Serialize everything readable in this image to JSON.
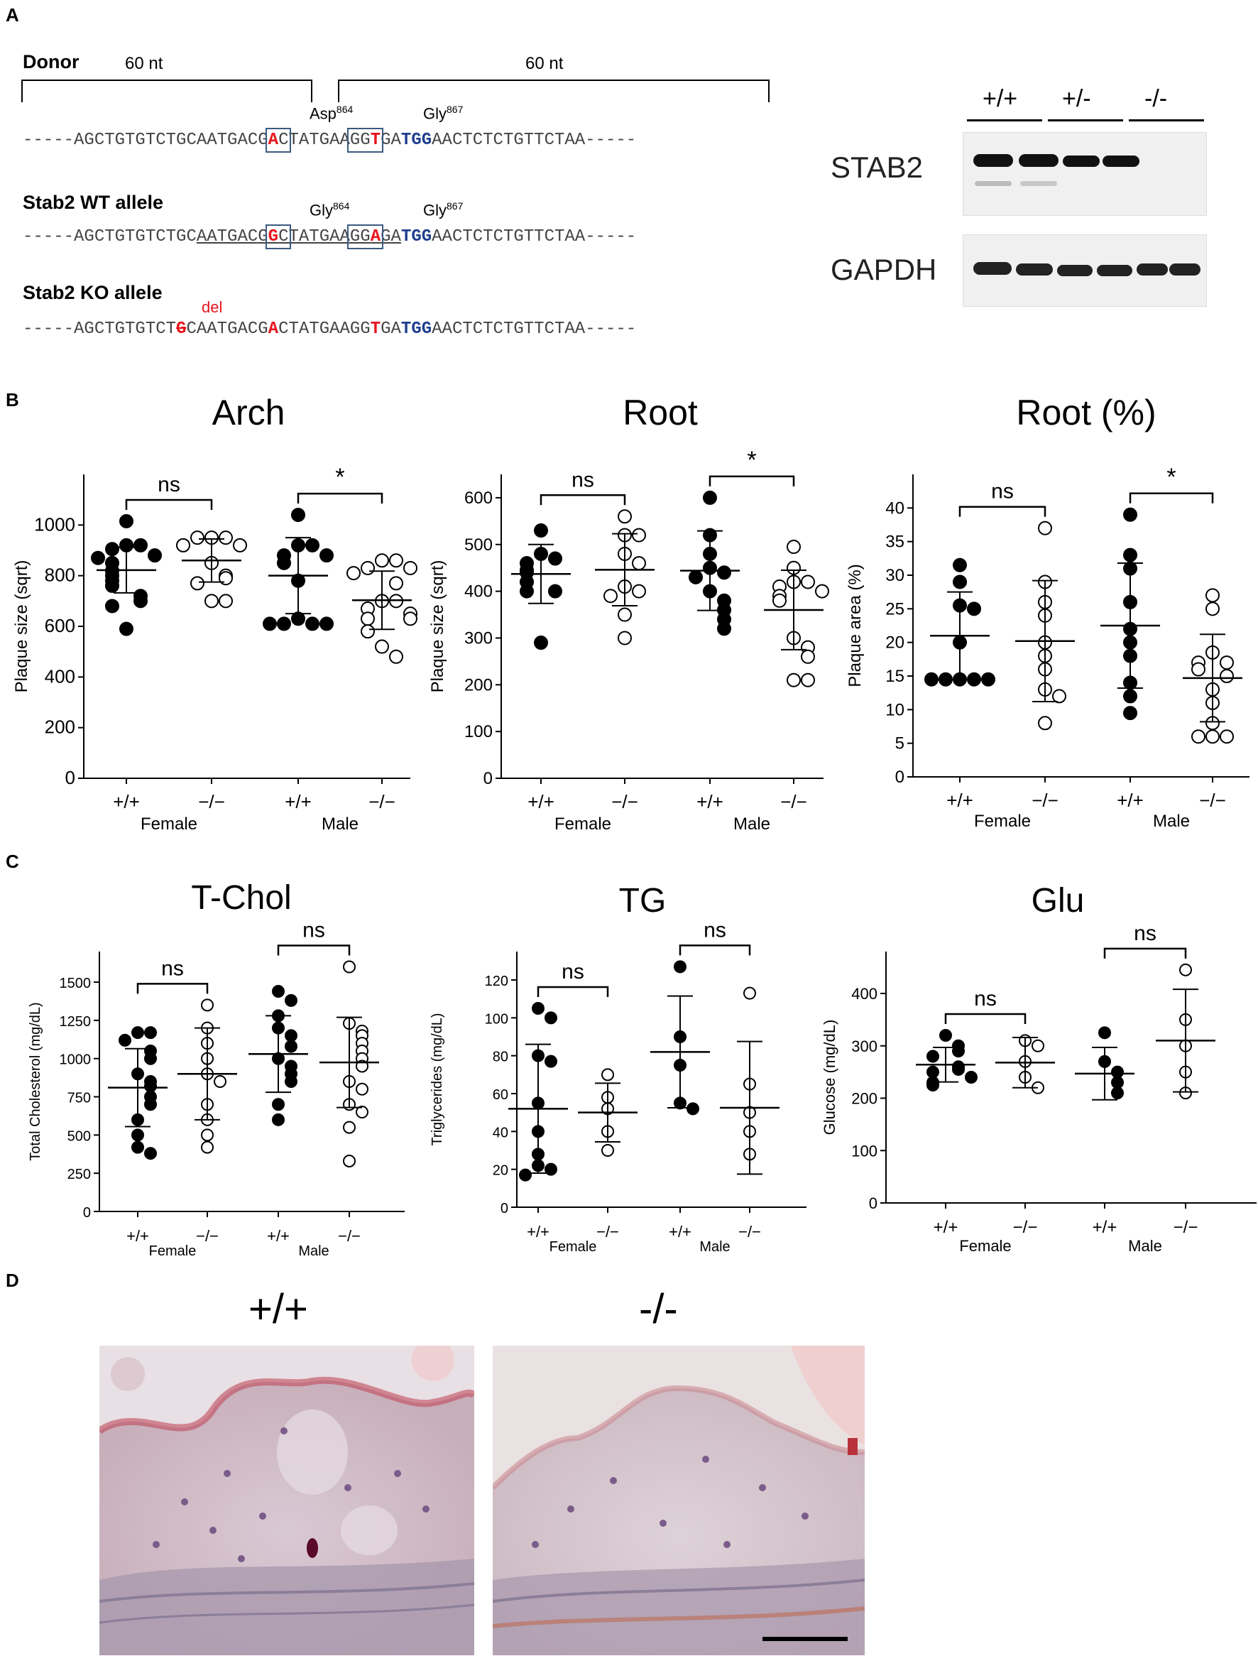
{
  "panel_letters": {
    "a": "A",
    "b": "B",
    "c": "C",
    "d": "D"
  },
  "panel_a": {
    "nt_left": "60 nt",
    "nt_right": "60 nt",
    "donor": {
      "label": "Donor",
      "codon1": "Asp",
      "codon1_sup": "864",
      "codon2": "Gly",
      "codon2_sup": "867",
      "s1": "-----AGCTGTGTCTGCAATGACG",
      "s2": "A",
      "s3": "C",
      "s4": "TATGAA",
      "s5": "GG",
      "s6": "T",
      "s7": "GA",
      "s8": "TGG",
      "s9": "AACTCTCTGTTCTAA-----"
    },
    "wt": {
      "label": "Stab2 WT allele",
      "codon1": "Gly",
      "codon1_sup": "864",
      "codon2": "Gly",
      "codon2_sup": "867",
      "s1": "-----AGCTGTGTCTGC",
      "s1u": "AATGAC",
      "s2a": "G",
      "s2": "G",
      "s3": "C",
      "s4": "TATGAA",
      "s5": "GG",
      "s6": "A",
      "s7": "GA",
      "s8": "TGG",
      "s9": "AACTCTCTGTTCTAA-----"
    },
    "ko": {
      "label": "Stab2 KO allele",
      "del": "del",
      "s1": "-----AGCTGTGTCT",
      "sx": "G",
      "s2": "CAATGACG",
      "s3": "A",
      "s4": "CTATGAAGG",
      "s5": "T",
      "s6": "GA",
      "s7": "TGG",
      "s8": "AACTCTCTGTTCTAA-----"
    },
    "blot": {
      "genotypes": [
        "+/+",
        "+/-",
        "-/-"
      ],
      "protein1": "STAB2",
      "protein2": "GAPDH"
    }
  },
  "chart_data": [
    {
      "type": "scatter",
      "title": "Arch",
      "ylabel": "Plaque size (sqrt)",
      "ylim": [
        0,
        1200
      ],
      "yticks": [
        0,
        200,
        400,
        600,
        800,
        1000
      ],
      "groups": [
        "+/+",
        "−/−",
        "+/+",
        "−/−"
      ],
      "sexes": [
        "Female",
        "Male"
      ],
      "filled": [
        true,
        false,
        true,
        false
      ],
      "means": [
        822,
        860,
        800,
        703
      ],
      "sd": [
        90,
        85,
        150,
        115
      ],
      "points": [
        [
          1015,
          920,
          920,
          905,
          880,
          870,
          850,
          820,
          800,
          780,
          760,
          720,
          700,
          680,
          590
        ],
        [
          950,
          950,
          950,
          920,
          920,
          850,
          800,
          790,
          770,
          700,
          700
        ],
        [
          1040,
          920,
          920,
          880,
          880,
          850,
          780,
          630,
          610,
          610,
          610,
          610
        ],
        [
          860,
          860,
          830,
          830,
          810,
          770,
          700,
          700,
          670,
          650,
          630,
          630,
          580,
          520,
          480
        ]
      ],
      "brackets": [
        {
          "label": "ns",
          "from": 0,
          "to": 1
        },
        {
          "label": "*",
          "from": 2,
          "to": 3
        }
      ]
    },
    {
      "type": "scatter",
      "title": "Root",
      "ylabel": "Plaque size (sqrt)",
      "ylim": [
        0,
        650
      ],
      "yticks": [
        0,
        100,
        200,
        300,
        400,
        500,
        600
      ],
      "groups": [
        "+/+",
        "−/−",
        "+/+",
        "−/−"
      ],
      "sexes": [
        "Female",
        "Male"
      ],
      "filled": [
        true,
        false,
        true,
        false
      ],
      "means": [
        437,
        446,
        444,
        360
      ],
      "sd": [
        63,
        77,
        85,
        85
      ],
      "points": [
        [
          530,
          480,
          470,
          460,
          445,
          440,
          420,
          400,
          400,
          290
        ],
        [
          560,
          520,
          520,
          480,
          460,
          410,
          400,
          390,
          350,
          300
        ],
        [
          600,
          520,
          480,
          450,
          440,
          430,
          400,
          380,
          360,
          340,
          320
        ],
        [
          495,
          450,
          420,
          420,
          410,
          400,
          390,
          380,
          300,
          280,
          260,
          210,
          210
        ]
      ],
      "brackets": [
        {
          "label": "ns",
          "from": 0,
          "to": 1
        },
        {
          "label": "*",
          "from": 2,
          "to": 3
        }
      ]
    },
    {
      "type": "scatter",
      "title": "Root (%)",
      "ylabel": "Plaque area (%)",
      "ylim": [
        0,
        45
      ],
      "yticks": [
        0,
        5,
        10,
        15,
        20,
        25,
        30,
        35,
        40
      ],
      "groups": [
        "+/+",
        "−/−",
        "+/+",
        "−/−"
      ],
      "sexes": [
        "Female",
        "Male"
      ],
      "filled": [
        true,
        false,
        true,
        false
      ],
      "means": [
        21,
        20.2,
        22.5,
        14.7
      ],
      "sd": [
        6.5,
        9,
        9.3,
        6.5
      ],
      "points": [
        [
          31.5,
          29,
          25.5,
          25,
          20,
          14.5,
          14.5,
          14.5,
          14.5,
          14.5
        ],
        [
          37,
          29,
          26,
          24,
          20,
          18,
          16,
          13,
          12,
          8
        ],
        [
          39,
          33,
          31,
          26,
          22,
          20,
          18,
          14,
          12,
          9.5
        ],
        [
          27,
          25,
          18.5,
          17,
          17,
          16,
          15,
          13,
          11,
          8,
          6,
          6,
          6
        ]
      ],
      "brackets": [
        {
          "label": "ns",
          "from": 0,
          "to": 1
        },
        {
          "label": "*",
          "from": 2,
          "to": 3
        }
      ]
    },
    {
      "type": "scatter",
      "title": "T-Chol",
      "ylabel": "Total Cholesterol (mg/dL)",
      "ylim": [
        0,
        1700
      ],
      "yticks": [
        0,
        250,
        500,
        750,
        1000,
        1250,
        1500
      ],
      "groups": [
        "+/+",
        "−/−",
        "+/+",
        "−/−"
      ],
      "sexes": [
        "Female",
        "Male"
      ],
      "filled": [
        true,
        false,
        true,
        false
      ],
      "means": [
        810,
        900,
        1030,
        975
      ],
      "sd": [
        255,
        300,
        250,
        295
      ],
      "points": [
        [
          1170,
          1170,
          1120,
          1050,
          1000,
          900,
          850,
          820,
          750,
          700,
          600,
          500,
          420,
          380
        ],
        [
          1350,
          1200,
          1100,
          1000,
          900,
          850,
          700,
          600,
          500,
          420
        ],
        [
          1440,
          1380,
          1280,
          1200,
          1150,
          1080,
          1000,
          950,
          900,
          850,
          700,
          600
        ],
        [
          1600,
          1230,
          1180,
          1150,
          1100,
          1050,
          1000,
          950,
          850,
          800,
          700,
          650,
          550,
          330
        ]
      ],
      "brackets": [
        {
          "label": "ns",
          "from": 0,
          "to": 1
        },
        {
          "label": "ns",
          "from": 2,
          "to": 3
        }
      ]
    },
    {
      "type": "scatter",
      "title": "TG",
      "ylabel": "Triglycerides (mg/dL)",
      "ylim": [
        0,
        135
      ],
      "yticks": [
        0,
        20,
        40,
        60,
        80,
        100,
        120
      ],
      "groups": [
        "+/+",
        "−/−",
        "+/+",
        "−/−"
      ],
      "sexes": [
        "Female",
        "Male"
      ],
      "filled": [
        true,
        false,
        true,
        false
      ],
      "means": [
        52,
        50,
        82,
        52.5
      ],
      "sd": [
        34,
        15.5,
        29.5,
        35
      ],
      "points": [
        [
          105,
          100,
          80,
          77,
          55,
          40,
          28,
          22,
          20,
          17
        ],
        [
          70,
          58,
          52,
          40,
          30
        ],
        [
          127,
          90,
          75,
          55,
          52
        ],
        [
          113,
          65,
          50,
          40,
          28
        ]
      ],
      "brackets": [
        {
          "label": "ns",
          "from": 0,
          "to": 1
        },
        {
          "label": "ns",
          "from": 2,
          "to": 3
        }
      ]
    },
    {
      "type": "scatter",
      "title": "Glu",
      "ylabel": "Glucose (mg/dL)",
      "ylim": [
        0,
        480
      ],
      "yticks": [
        0,
        100,
        200,
        300,
        400
      ],
      "groups": [
        "+/+",
        "−/−",
        "+/+",
        "−/−"
      ],
      "sexes": [
        "Female",
        "Male"
      ],
      "filled": [
        true,
        false,
        true,
        false
      ],
      "means": [
        264,
        268,
        247,
        310
      ],
      "sd": [
        33,
        48,
        50,
        98
      ],
      "points": [
        [
          320,
          300,
          290,
          280,
          260,
          255,
          250,
          240,
          230,
          225
        ],
        [
          310,
          300,
          270,
          240,
          220
        ],
        [
          325,
          270,
          250,
          230,
          210
        ],
        [
          445,
          350,
          300,
          250,
          210
        ]
      ],
      "brackets": [
        {
          "label": "ns",
          "from": 0,
          "to": 1
        },
        {
          "label": "ns",
          "from": 2,
          "to": 3
        }
      ]
    }
  ],
  "panel_d": {
    "left_title": "+/+",
    "right_title": "-/-"
  },
  "colors": {
    "red": "#e8141c",
    "blue": "#1f3f8f",
    "box": "#3a5a80",
    "tissue_pink": "#e3c7cf",
    "tissue_purple": "#a58aa8"
  }
}
